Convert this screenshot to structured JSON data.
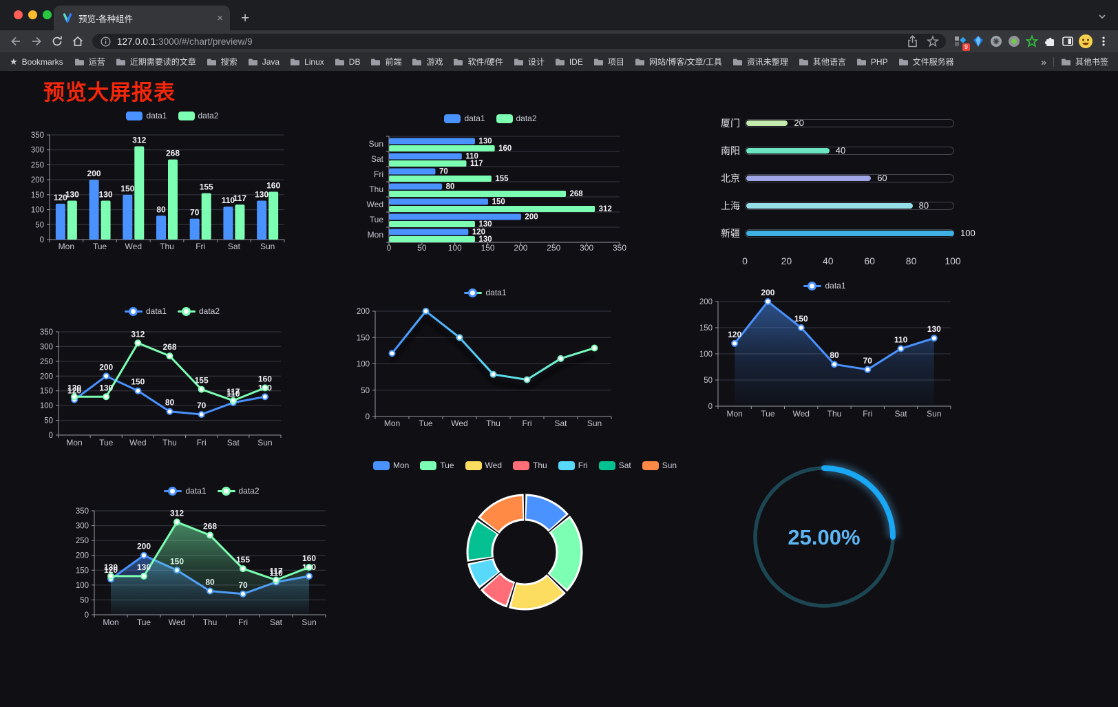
{
  "browser": {
    "window_controls": [
      "close",
      "minimize",
      "zoom"
    ],
    "tab": {
      "title": "预览-各种组件",
      "close_glyph": "×"
    },
    "new_tab_glyph": "+",
    "url": {
      "host": "127.0.0.1",
      "rest": ":3000/#/chart/preview/9"
    },
    "extensions_badge": "9",
    "bookmarks_bar": {
      "bookmarks_label": "Bookmarks",
      "folders": [
        "运营",
        "近期需要读的文章",
        "搜索",
        "Java",
        "Linux",
        "DB",
        "前端",
        "游戏",
        "软件/硬件",
        "设计",
        "IDE",
        "项目",
        "网站/博客/文章/工具",
        "资讯未整理",
        "其他语言",
        "PHP",
        "文件服务器"
      ],
      "overflow": "»",
      "other_bookmarks": "其他书签"
    }
  },
  "page": {
    "title": "预览大屏报表",
    "title_color": "#f5270b"
  },
  "chart_data": [
    {
      "id": "bar",
      "type": "bar",
      "orientation": "vertical",
      "categories": [
        "Mon",
        "Tue",
        "Wed",
        "Thu",
        "Fri",
        "Sat",
        "Sun"
      ],
      "series": [
        {
          "name": "data1",
          "color": "#4992ff",
          "values": [
            120,
            200,
            150,
            80,
            70,
            110,
            130
          ]
        },
        {
          "name": "data2",
          "color": "#7cffb2",
          "values": [
            130,
            130,
            312,
            268,
            155,
            117,
            160
          ]
        }
      ],
      "ylim": [
        0,
        350
      ],
      "yticks": [
        0,
        50,
        100,
        150,
        200,
        250,
        300,
        350
      ],
      "value_labels": true,
      "grid": true,
      "legend": {
        "marker": "rect",
        "position": "top",
        "items": [
          {
            "label": "data1",
            "color": "#4992ff"
          },
          {
            "label": "data2",
            "color": "#7cffb2"
          }
        ]
      }
    },
    {
      "id": "hbar",
      "type": "bar",
      "orientation": "horizontal",
      "categories": [
        "Mon",
        "Tue",
        "Wed",
        "Thu",
        "Fri",
        "Sat",
        "Sun"
      ],
      "series": [
        {
          "name": "data1",
          "color": "#4992ff",
          "values": [
            120,
            200,
            150,
            80,
            70,
            110,
            130
          ]
        },
        {
          "name": "data2",
          "color": "#7cffb2",
          "values": [
            130,
            130,
            312,
            268,
            155,
            117,
            160
          ]
        }
      ],
      "xlim": [
        0,
        350
      ],
      "xticks": [
        0,
        50,
        100,
        150,
        200,
        250,
        300,
        350
      ],
      "value_labels": true,
      "grid": true,
      "legend": {
        "marker": "rect",
        "position": "top",
        "items": [
          {
            "label": "data1",
            "color": "#4992ff"
          },
          {
            "label": "data2",
            "color": "#7cffb2"
          }
        ]
      }
    },
    {
      "id": "progress",
      "type": "bar",
      "subtype": "progress-capsule",
      "categories": [
        "厦门",
        "南阳",
        "北京",
        "上海",
        "新疆"
      ],
      "values": [
        20,
        40,
        60,
        80,
        100
      ],
      "colors": [
        "#c4ebad",
        "#6be6c1",
        "#a0a7e6",
        "#96dee8",
        "#3fb1e3"
      ],
      "xlim": [
        0,
        100
      ],
      "xticks": [
        0,
        20,
        40,
        60,
        80,
        100
      ],
      "value_labels": true
    },
    {
      "id": "line1",
      "type": "line",
      "categories": [
        "Mon",
        "Tue",
        "Wed",
        "Thu",
        "Fri",
        "Sat",
        "Sun"
      ],
      "series": [
        {
          "name": "data1",
          "color": "#4992ff",
          "values": [
            120,
            200,
            150,
            80,
            70,
            110,
            130
          ]
        },
        {
          "name": "data2",
          "color": "#7cffb2",
          "values": [
            130,
            130,
            312,
            268,
            155,
            117,
            160
          ]
        }
      ],
      "ylim": [
        0,
        350
      ],
      "yticks": [
        0,
        50,
        100,
        150,
        200,
        250,
        300,
        350
      ],
      "value_labels": true,
      "grid": true,
      "legend": {
        "marker": "line",
        "position": "top",
        "items": [
          {
            "label": "data1",
            "color": "#4992ff"
          },
          {
            "label": "data2",
            "color": "#7cffb2"
          }
        ]
      }
    },
    {
      "id": "line2",
      "type": "line",
      "style": "gradient-shadow",
      "categories": [
        "Mon",
        "Tue",
        "Wed",
        "Thu",
        "Fri",
        "Sat",
        "Sun"
      ],
      "series": [
        {
          "name": "data1",
          "color": "#4992ff",
          "gradient": [
            "#4992ff",
            "#58d9f9",
            "#7cffb2"
          ],
          "values": [
            120,
            200,
            150,
            80,
            70,
            110,
            130
          ]
        }
      ],
      "ylim": [
        0,
        200
      ],
      "yticks": [
        0,
        50,
        100,
        150,
        200
      ],
      "value_labels": false,
      "shadow": true,
      "grid": true,
      "legend": {
        "marker": "line",
        "position": "top",
        "items": [
          {
            "label": "data1",
            "color": "#4992ff",
            "line": "linear-gradient(90deg,#4992ff,#7cffb2)"
          }
        ]
      }
    },
    {
      "id": "line3",
      "type": "area",
      "categories": [
        "Mon",
        "Tue",
        "Wed",
        "Thu",
        "Fri",
        "Sat",
        "Sun"
      ],
      "series": [
        {
          "name": "data1",
          "color": "#4992ff",
          "area": true,
          "values": [
            120,
            200,
            150,
            80,
            70,
            110,
            130
          ]
        }
      ],
      "ylim": [
        0,
        200
      ],
      "yticks": [
        0,
        50,
        100,
        150,
        200
      ],
      "value_labels": true,
      "grid": true,
      "legend": {
        "marker": "line",
        "position": "top",
        "items": [
          {
            "label": "data1",
            "color": "#4992ff"
          }
        ]
      }
    },
    {
      "id": "line4",
      "type": "area",
      "categories": [
        "Mon",
        "Tue",
        "Wed",
        "Thu",
        "Fri",
        "Sat",
        "Sun"
      ],
      "series": [
        {
          "name": "data1",
          "color": "#4992ff",
          "area": true,
          "values": [
            120,
            200,
            150,
            80,
            70,
            110,
            130
          ]
        },
        {
          "name": "data2",
          "color": "#7cffb2",
          "area": true,
          "values": [
            130,
            130,
            312,
            268,
            155,
            117,
            160
          ]
        }
      ],
      "ylim": [
        0,
        350
      ],
      "yticks": [
        0,
        50,
        100,
        150,
        200,
        250,
        300,
        350
      ],
      "value_labels": true,
      "grid": true,
      "legend": {
        "marker": "line",
        "position": "top",
        "items": [
          {
            "label": "data1",
            "color": "#4992ff"
          },
          {
            "label": "data2",
            "color": "#7cffb2"
          }
        ]
      }
    },
    {
      "id": "pie",
      "type": "pie",
      "donut": true,
      "categories": [
        "Mon",
        "Tue",
        "Wed",
        "Thu",
        "Fri",
        "Sat",
        "Sun"
      ],
      "values": [
        120,
        200,
        150,
        80,
        70,
        110,
        130
      ],
      "colors": [
        "#4992ff",
        "#7cffb2",
        "#fddd60",
        "#ff6e76",
        "#58d9f9",
        "#05c091",
        "#ff8a45"
      ],
      "legend": {
        "marker": "rect",
        "position": "top",
        "items": [
          {
            "label": "Mon",
            "color": "#4992ff"
          },
          {
            "label": "Tue",
            "color": "#7cffb2"
          },
          {
            "label": "Wed",
            "color": "#fddd60"
          },
          {
            "label": "Thu",
            "color": "#ff6e76"
          },
          {
            "label": "Fri",
            "color": "#58d9f9"
          },
          {
            "label": "Sat",
            "color": "#05c091"
          },
          {
            "label": "Sun",
            "color": "#ff8a45"
          }
        ]
      }
    },
    {
      "id": "gauge",
      "type": "gauge",
      "percent": 25,
      "label": "25.00%",
      "color": "#18a8f5",
      "track_color": "#1d4653",
      "text_color": "#5db6f3"
    }
  ]
}
